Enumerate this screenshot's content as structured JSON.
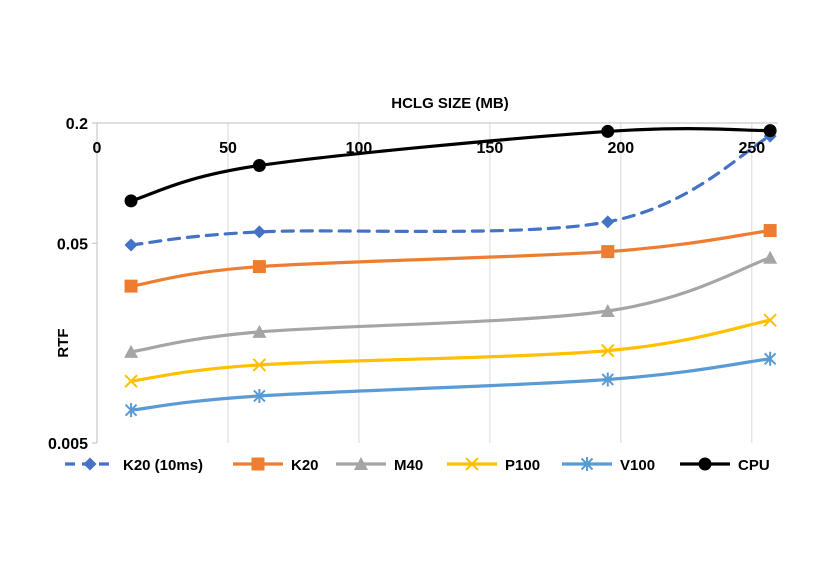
{
  "chart_data": {
    "type": "line",
    "title": "",
    "xlabel": "HCLG SIZE (MB)",
    "ylabel": "RTF",
    "x_axis_position": "top",
    "y_scale": "log",
    "xlim": [
      0,
      260
    ],
    "ylim": [
      0.005,
      0.2
    ],
    "x_ticks": [
      0,
      50,
      100,
      150,
      200,
      250
    ],
    "x_tick_labels": [
      "0",
      "50",
      "100",
      "150",
      "200",
      "250"
    ],
    "y_ticks": [
      0.005,
      0.05,
      0.2
    ],
    "y_tick_labels": [
      "0.005",
      "0.05",
      "0.2"
    ],
    "grid": "vertical",
    "legend_position": "bottom",
    "series": [
      {
        "name": "K20 (10ms)",
        "color": "#4472C4",
        "marker": "diamond",
        "dash": true,
        "x": [
          13,
          62,
          195,
          257
        ],
        "y": [
          0.049,
          0.057,
          0.064,
          0.172
        ]
      },
      {
        "name": "K20",
        "color": "#ED7D31",
        "marker": "square",
        "dash": false,
        "x": [
          13,
          62,
          195,
          257
        ],
        "y": [
          0.0305,
          0.0382,
          0.0454,
          0.0579
        ]
      },
      {
        "name": "M40",
        "color": "#A5A5A5",
        "marker": "triangle",
        "dash": false,
        "x": [
          13,
          62,
          195,
          257
        ],
        "y": [
          0.0143,
          0.018,
          0.0229,
          0.0423
        ]
      },
      {
        "name": "P100",
        "color": "#FFC000",
        "marker": "x",
        "dash": false,
        "x": [
          13,
          62,
          195,
          257
        ],
        "y": [
          0.0102,
          0.0123,
          0.0145,
          0.0206
        ]
      },
      {
        "name": "V100",
        "color": "#5B9BD5",
        "marker": "star",
        "dash": false,
        "x": [
          13,
          62,
          195,
          257
        ],
        "y": [
          0.0073,
          0.0086,
          0.0104,
          0.0132
        ]
      },
      {
        "name": "CPU",
        "color": "#000000",
        "marker": "circle",
        "dash": false,
        "x": [
          13,
          62,
          195,
          257
        ],
        "y": [
          0.0815,
          0.1225,
          0.1815,
          0.1832
        ]
      }
    ]
  }
}
